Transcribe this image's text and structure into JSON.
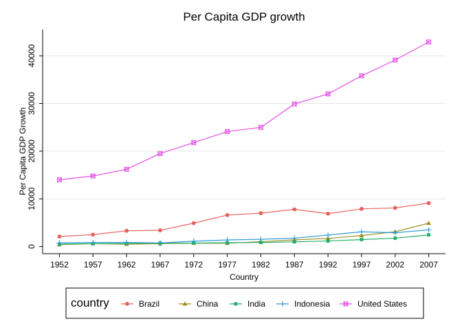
{
  "chart_data": {
    "type": "line",
    "title": "Per Capita GDP growth",
    "xlabel": "Country",
    "ylabel": "Per Capita GDP Growth",
    "x": [
      1952,
      1957,
      1962,
      1967,
      1972,
      1977,
      1982,
      1987,
      1992,
      1997,
      2002,
      2007
    ],
    "xlim": [
      1949.5,
      2009.5
    ],
    "ylim": [
      -1500,
      45500
    ],
    "yticks": [
      0,
      10000,
      20000,
      30000,
      40000
    ],
    "grid": true,
    "legend": {
      "title": "country",
      "placement": "bottom"
    },
    "series": [
      {
        "name": "Brazil",
        "color": "#e8605a",
        "marker": "circle",
        "values": [
          2100,
          2500,
          3300,
          3400,
          4900,
          6600,
          7000,
          7800,
          6900,
          7900,
          8100,
          9100
        ]
      },
      {
        "name": "China",
        "color": "#9a8f1c",
        "marker": "triangle",
        "values": [
          400,
          600,
          500,
          600,
          700,
          700,
          1000,
          1400,
          1700,
          2300,
          3100,
          4900
        ]
      },
      {
        "name": "India",
        "color": "#1fae6a",
        "marker": "square",
        "values": [
          500,
          600,
          650,
          700,
          720,
          810,
          850,
          980,
          1160,
          1460,
          1750,
          2450
        ]
      },
      {
        "name": "Indonesia",
        "color": "#2a97d6",
        "marker": "plus",
        "values": [
          750,
          860,
          850,
          760,
          1110,
          1380,
          1520,
          1750,
          2400,
          3100,
          2900,
          3500
        ]
      },
      {
        "name": "United States",
        "color": "#e24de6",
        "marker": "boxcross",
        "values": [
          14000,
          14800,
          16200,
          19500,
          21800,
          24100,
          25000,
          29900,
          32000,
          35800,
          39100,
          42900
        ]
      }
    ]
  }
}
